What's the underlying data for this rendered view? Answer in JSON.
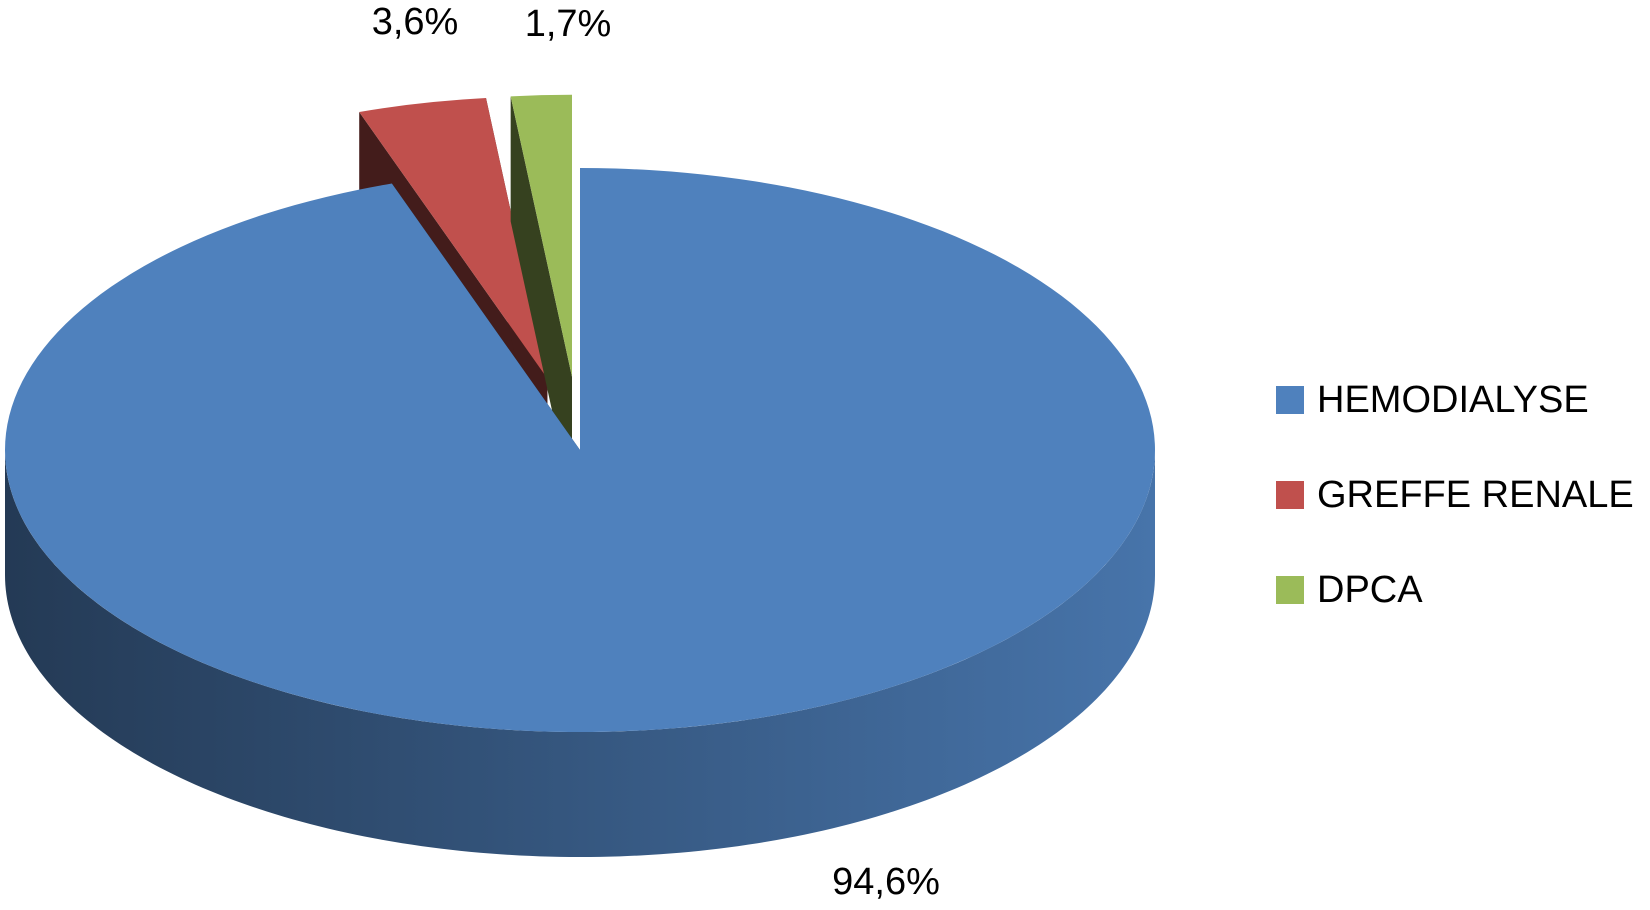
{
  "chart_data": {
    "type": "pie",
    "categories": [
      "HEMODIALYSE",
      "GREFFE RENALE",
      "DPCA"
    ],
    "values": [
      94.6,
      3.6,
      1.7
    ],
    "value_labels": [
      "94,6%",
      "3,6%",
      "1,7%"
    ],
    "colors": [
      "#4f81bd",
      "#c0504d",
      "#9bbb59"
    ],
    "legend": "right"
  }
}
